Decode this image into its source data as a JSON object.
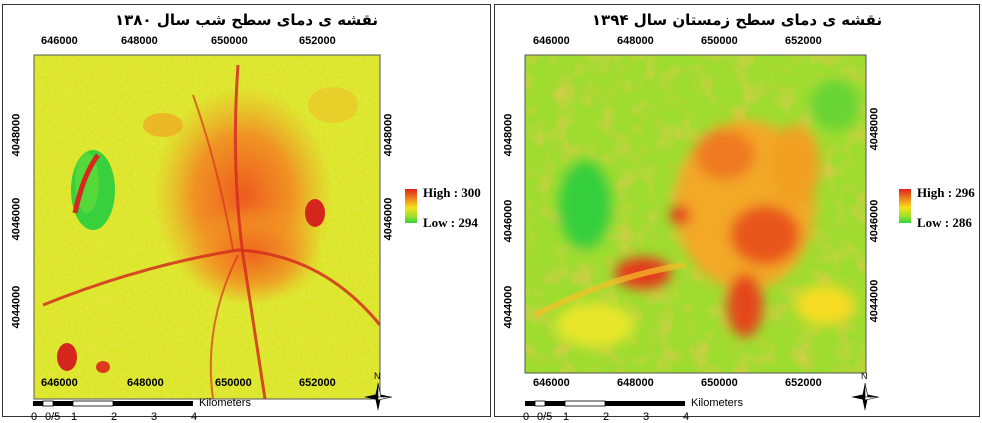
{
  "panels": [
    {
      "title": "نقشه ی دمای سطح شب سال ۱۳۸۰",
      "legend": {
        "high_label": "High : 300",
        "low_label": "Low : 294",
        "high": 300,
        "low": 294
      },
      "x_ticks": [
        "646000",
        "648000",
        "650000",
        "652000"
      ],
      "y_ticks": [
        "4048000",
        "4046000",
        "4044000"
      ],
      "scale": {
        "labels": [
          "0",
          "0/5",
          "1",
          "2",
          "3",
          "4"
        ],
        "unit": "Kilometers"
      },
      "north_label": "N"
    },
    {
      "title": "نقشه ی دمای سطح زمستان سال ۱۳۹۴",
      "legend": {
        "high_label": "High : 296",
        "low_label": "Low : 286",
        "high": 296,
        "low": 286
      },
      "x_ticks": [
        "646000",
        "648000",
        "650000",
        "652000"
      ],
      "y_ticks": [
        "4048000",
        "4046000",
        "4044000"
      ],
      "scale": {
        "labels": [
          "0",
          "0/5",
          "1",
          "2",
          "3",
          "4"
        ],
        "unit": "Kilometers"
      },
      "north_label": "N"
    }
  ],
  "colors": {
    "high": "#e0231b",
    "mid_high": "#f08a1e",
    "mid": "#f6e21a",
    "mid_low": "#b7e52a",
    "low": "#2fd43c"
  }
}
